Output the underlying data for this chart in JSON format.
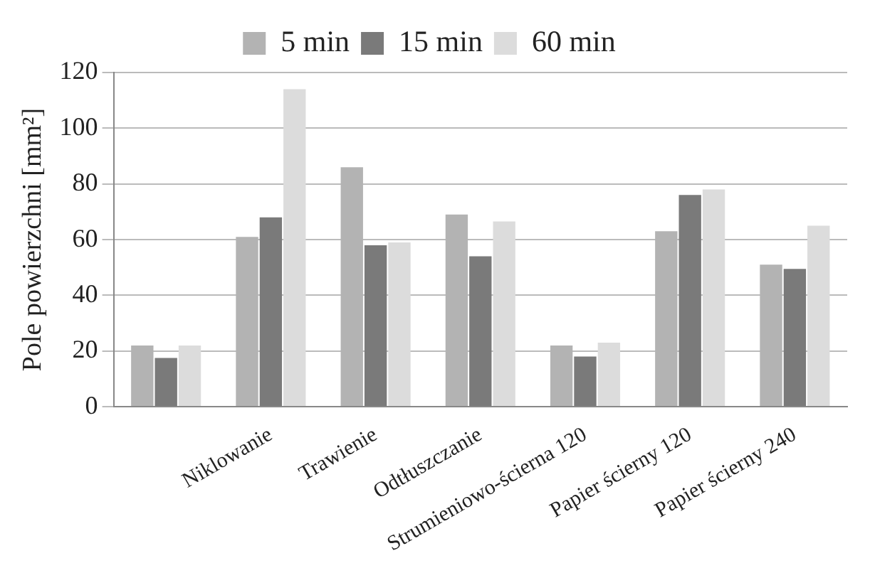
{
  "chart_data": {
    "type": "bar",
    "ylabel": "Pole powierzchni [mm²]",
    "categories": [
      null,
      "Niklowanie",
      "Trawienie",
      "Odtłuszczanie",
      "Strumieniowo-ścierna 120",
      "Papier ścierny 120",
      "Papier ścierny 240"
    ],
    "series": [
      {
        "name": "5 min",
        "color": "#b3b3b3",
        "values": [
          22,
          61,
          86,
          69,
          22,
          63,
          51
        ]
      },
      {
        "name": "15 min",
        "color": "#7a7a7a",
        "values": [
          17.5,
          68,
          58,
          54,
          18,
          76,
          49.5
        ]
      },
      {
        "name": "60 min",
        "color": "#dcdcdc",
        "values": [
          22,
          114,
          59,
          66.5,
          23,
          78,
          65
        ]
      }
    ],
    "ylim": [
      0,
      120
    ],
    "yticks": [
      0,
      20,
      40,
      60,
      80,
      100,
      120
    ],
    "grid": "y",
    "legend": "top"
  }
}
